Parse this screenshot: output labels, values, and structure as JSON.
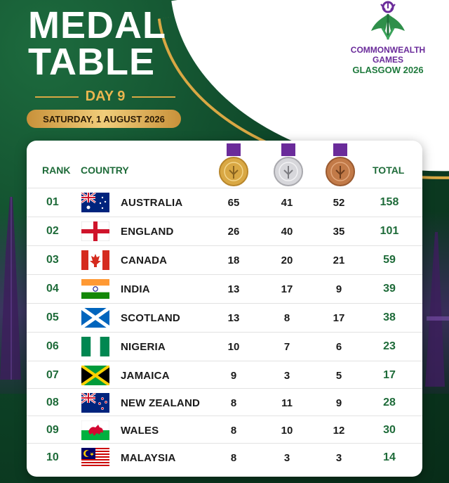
{
  "title_line1": "MEDAL",
  "title_line2": "TABLE",
  "day": "DAY 9",
  "date": "SATURDAY, 1 AUGUST 2026",
  "logo": {
    "line1": "COMMONWEALTH",
    "line2": "GAMES",
    "line3": "GLASGOW 2026"
  },
  "colors": {
    "background_green": "#0d3b24",
    "accent_gold": "#d9a844",
    "header_green": "#1e6b39",
    "logo_purple": "#6a2b9a"
  },
  "table": {
    "headers": {
      "rank": "RANK",
      "country": "COUNTRY",
      "gold": "gold-medal-icon",
      "silver": "silver-medal-icon",
      "bronze": "bronze-medal-icon",
      "total": "TOTAL"
    },
    "rows": [
      {
        "rank": "01",
        "country": "AUSTRALIA",
        "flag": "flag-australia",
        "gold": "65",
        "silver": "41",
        "bronze": "52",
        "total": "158"
      },
      {
        "rank": "02",
        "country": "ENGLAND",
        "flag": "flag-england",
        "gold": "26",
        "silver": "40",
        "bronze": "35",
        "total": "101"
      },
      {
        "rank": "03",
        "country": "CANADA",
        "flag": "flag-canada",
        "gold": "18",
        "silver": "20",
        "bronze": "21",
        "total": "59"
      },
      {
        "rank": "04",
        "country": "INDIA",
        "flag": "flag-india",
        "gold": "13",
        "silver": "17",
        "bronze": "9",
        "total": "39"
      },
      {
        "rank": "05",
        "country": "SCOTLAND",
        "flag": "flag-scotland",
        "gold": "13",
        "silver": "8",
        "bronze": "17",
        "total": "38"
      },
      {
        "rank": "06",
        "country": "NIGERIA",
        "flag": "flag-nigeria",
        "gold": "10",
        "silver": "7",
        "bronze": "6",
        "total": "23"
      },
      {
        "rank": "07",
        "country": "JAMAICA",
        "flag": "flag-jamaica",
        "gold": "9",
        "silver": "3",
        "bronze": "5",
        "total": "17"
      },
      {
        "rank": "08",
        "country": "NEW ZEALAND",
        "flag": "flag-new-zealand",
        "gold": "8",
        "silver": "11",
        "bronze": "9",
        "total": "28"
      },
      {
        "rank": "09",
        "country": "WALES",
        "flag": "flag-wales",
        "gold": "8",
        "silver": "10",
        "bronze": "12",
        "total": "30"
      },
      {
        "rank": "10",
        "country": "MALAYSIA",
        "flag": "flag-malaysia",
        "gold": "8",
        "silver": "3",
        "bronze": "3",
        "total": "14"
      }
    ]
  }
}
